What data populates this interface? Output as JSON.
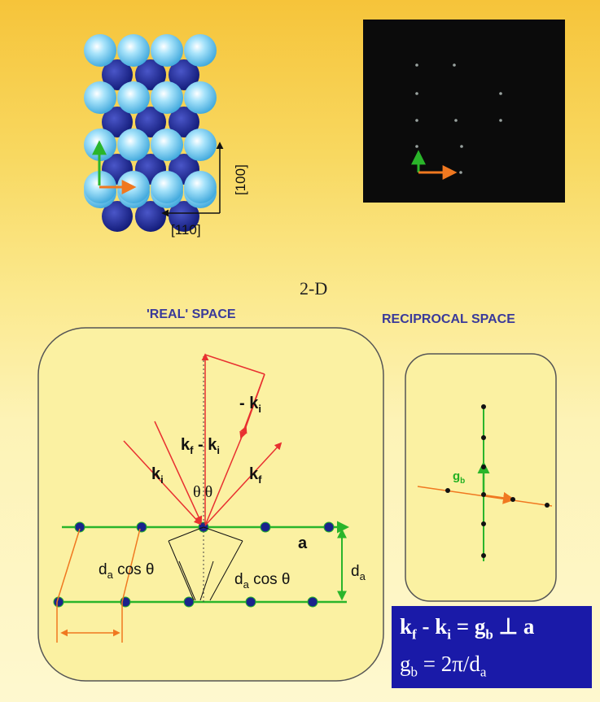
{
  "labels": {
    "direction_110": "[110]",
    "direction_100": "[100]",
    "title_2d": "2-D",
    "real_space": "'REAL' SPACE",
    "reciprocal_space": "RECIPROCAL SPACE",
    "minus_ki": "- k",
    "minus_ki_sub": "i",
    "kf": "k",
    "kf_sub": "f",
    "kf_minus_ki": "k",
    "kf_minus_ki_sub1": "f",
    "kf_minus_ki_mid": " - k",
    "kf_minus_ki_sub2": "i",
    "ki": "k",
    "ki_sub": "i",
    "theta_pair": "θ θ",
    "vector_a": "a",
    "da_cos_left": "d",
    "da_cos_left_sub": "a",
    "da_cos_left_tail": " cos θ",
    "da_cos_right": "d",
    "da_cos_right_sub": "a",
    "da_cos_right_tail": " cos θ",
    "da": "d",
    "da_sub": "a",
    "gb": "g",
    "gb_sub": "b"
  },
  "formula": {
    "line1_a": "k",
    "line1_a_sub": "f",
    "line1_b": " - k",
    "line1_b_sub": "i",
    "line1_c": " = g",
    "line1_c_sub": "b",
    "line1_d": " ⊥ a",
    "line2_a": "g",
    "line2_a_sub": "b",
    "line2_b": " = 2π/d",
    "line2_b_sub": "a"
  },
  "colors": {
    "light_atom": "#5ec6ef",
    "dark_atom": "#1a238c",
    "green_vector": "#2ab52a",
    "orange_vector": "#f07820",
    "red_wave": "#e83030",
    "formula_bg": "#1a1aa8",
    "title_blue": "#3a3a9a"
  }
}
